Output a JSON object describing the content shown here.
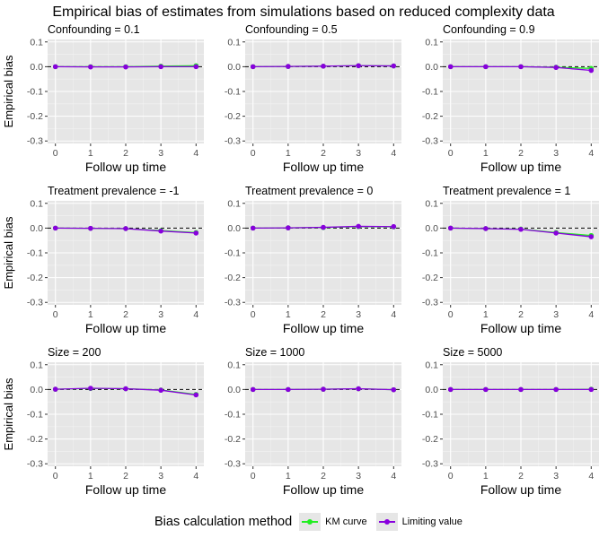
{
  "figure_title": "Empirical bias of estimates from simulations based on reduced complexity data",
  "legend": {
    "title": "Bias calculation method",
    "items": [
      {
        "label": "KM curve",
        "color": "#22ee22"
      },
      {
        "label": "Limiting value",
        "color": "#8800dd"
      }
    ]
  },
  "chart_data": {
    "type": "line",
    "layout": "3x3 facet grid",
    "xlabel": "Follow up time",
    "ylabel": "Empirical bias",
    "x": [
      0,
      1,
      2,
      3,
      4
    ],
    "x_ticks": [
      "0",
      "1",
      "2",
      "3",
      "4"
    ],
    "ylim": [
      -0.31,
      0.11
    ],
    "y_ticks": [
      "0.1",
      "0.0",
      "-0.1",
      "-0.2",
      "-0.3"
    ],
    "y_tick_values": [
      0.1,
      0.0,
      -0.1,
      -0.2,
      -0.3
    ],
    "reference_line": {
      "y": 0,
      "style": "dashed"
    },
    "grid": true,
    "panel_background": "#e6e6e6",
    "panels": [
      {
        "title": "Confounding = 0.1",
        "series": [
          {
            "name": "KM curve",
            "values": [
              0.0,
              0.0,
              0.0,
              0.002,
              0.004
            ]
          },
          {
            "name": "Limiting value",
            "values": [
              0.0,
              -0.001,
              -0.001,
              0.0,
              0.0
            ]
          }
        ]
      },
      {
        "title": "Confounding = 0.5",
        "series": [
          {
            "name": "KM curve",
            "values": [
              0.0,
              0.001,
              0.002,
              0.004,
              0.003
            ]
          },
          {
            "name": "Limiting value",
            "values": [
              0.0,
              0.001,
              0.002,
              0.004,
              0.003
            ]
          }
        ]
      },
      {
        "title": "Confounding = 0.9",
        "series": [
          {
            "name": "KM curve",
            "values": [
              0.0,
              0.0,
              0.0,
              -0.002,
              -0.007
            ]
          },
          {
            "name": "Limiting value",
            "values": [
              0.0,
              0.0,
              0.0,
              -0.003,
              -0.015
            ]
          }
        ]
      },
      {
        "title": "Treatment prevalence = -1",
        "series": [
          {
            "name": "KM curve",
            "values": [
              0.0,
              -0.001,
              -0.002,
              -0.01,
              -0.018
            ]
          },
          {
            "name": "Limiting value",
            "values": [
              0.0,
              -0.001,
              -0.002,
              -0.012,
              -0.02
            ]
          }
        ]
      },
      {
        "title": "Treatment prevalence = 0",
        "series": [
          {
            "name": "KM curve",
            "values": [
              0.0,
              0.001,
              0.002,
              0.006,
              0.005
            ]
          },
          {
            "name": "Limiting value",
            "values": [
              0.0,
              0.001,
              0.003,
              0.007,
              0.006
            ]
          }
        ]
      },
      {
        "title": "Treatment prevalence = 1",
        "series": [
          {
            "name": "KM curve",
            "values": [
              0.0,
              -0.002,
              -0.004,
              -0.018,
              -0.03
            ]
          },
          {
            "name": "Limiting value",
            "values": [
              0.0,
              -0.002,
              -0.005,
              -0.02,
              -0.035
            ]
          }
        ]
      },
      {
        "title": "Size = 200",
        "series": [
          {
            "name": "KM curve",
            "values": [
              0.001,
              0.004,
              0.003,
              -0.002,
              -0.02
            ]
          },
          {
            "name": "Limiting value",
            "values": [
              0.001,
              0.005,
              0.003,
              -0.003,
              -0.022
            ]
          }
        ]
      },
      {
        "title": "Size = 1000",
        "series": [
          {
            "name": "KM curve",
            "values": [
              0.0,
              0.0,
              0.001,
              0.003,
              -0.001
            ]
          },
          {
            "name": "Limiting value",
            "values": [
              0.0,
              0.0,
              0.001,
              0.003,
              -0.001
            ]
          }
        ]
      },
      {
        "title": "Size = 5000",
        "series": [
          {
            "name": "KM curve",
            "values": [
              0.0,
              0.0,
              0.0,
              0.0,
              0.001
            ]
          },
          {
            "name": "Limiting value",
            "values": [
              0.0,
              0.0,
              0.0,
              0.0,
              0.0
            ]
          }
        ]
      }
    ]
  }
}
